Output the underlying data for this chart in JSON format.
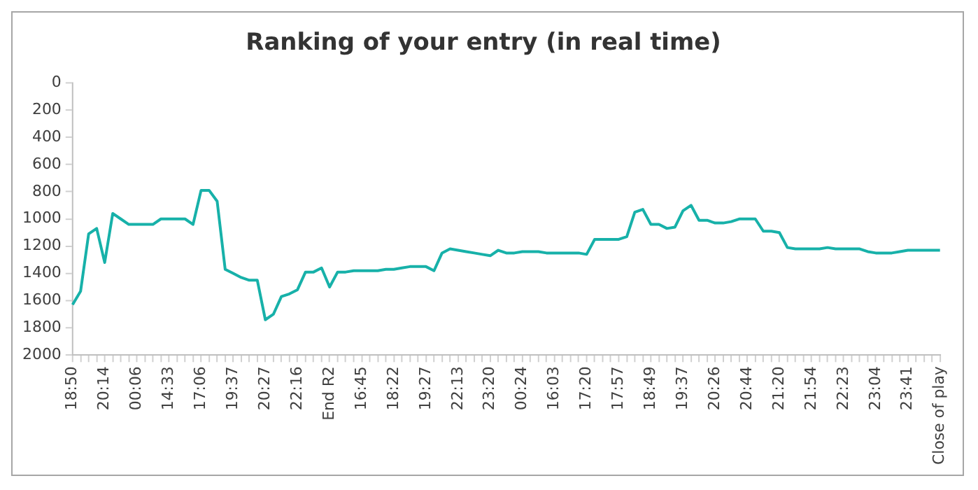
{
  "chart_data": {
    "type": "line",
    "title": "Ranking of your entry (in real time)",
    "categories": [
      "18:50",
      null,
      null,
      null,
      "20:14",
      null,
      null,
      null,
      "00:06",
      null,
      null,
      null,
      "14:33",
      null,
      null,
      null,
      "17:06",
      null,
      null,
      null,
      "19:37",
      null,
      null,
      null,
      "20:27",
      null,
      null,
      null,
      "22:16",
      null,
      null,
      null,
      "End R2",
      null,
      null,
      null,
      "16:45",
      null,
      null,
      null,
      "18:22",
      null,
      null,
      null,
      "19:27",
      null,
      null,
      null,
      "22:13",
      null,
      null,
      null,
      "23:20",
      null,
      null,
      null,
      "00:24",
      null,
      null,
      null,
      "16:03",
      null,
      null,
      null,
      "17:20",
      null,
      null,
      null,
      "17:57",
      null,
      null,
      null,
      "18:49",
      null,
      null,
      null,
      "19:37",
      null,
      null,
      null,
      "20:26",
      null,
      null,
      null,
      "20:44",
      null,
      null,
      null,
      "21:20",
      null,
      null,
      null,
      "21:54",
      null,
      null,
      null,
      "22:23",
      null,
      null,
      null,
      "23:04",
      null,
      null,
      null,
      "23:41",
      null,
      null,
      null,
      "Close of play"
    ],
    "series": [
      {
        "color": "#17b1a9",
        "values": [
          1630,
          1530,
          1110,
          1070,
          1320,
          960,
          1000,
          1040,
          1040,
          1040,
          1040,
          1000,
          1000,
          1000,
          1000,
          1040,
          790,
          790,
          870,
          1370,
          1400,
          1430,
          1450,
          1450,
          1740,
          1700,
          1570,
          1550,
          1520,
          1390,
          1390,
          1360,
          1500,
          1390,
          1390,
          1380,
          1380,
          1380,
          1380,
          1370,
          1370,
          1360,
          1350,
          1350,
          1350,
          1380,
          1250,
          1220,
          1230,
          1240,
          1250,
          1260,
          1270,
          1230,
          1250,
          1250,
          1240,
          1240,
          1240,
          1250,
          1250,
          1250,
          1250,
          1250,
          1260,
          1150,
          1150,
          1150,
          1150,
          1130,
          950,
          930,
          1040,
          1040,
          1070,
          1060,
          940,
          900,
          1010,
          1010,
          1030,
          1030,
          1020,
          1000,
          1000,
          1000,
          1090,
          1090,
          1100,
          1210,
          1220,
          1220,
          1220,
          1220,
          1210,
          1220,
          1220,
          1220,
          1220,
          1240,
          1250,
          1250,
          1250,
          1240,
          1230,
          1230,
          1230,
          1230,
          1230
        ]
      }
    ],
    "ylim": [
      2000,
      0
    ],
    "yticks": [
      0,
      200,
      400,
      600,
      800,
      1000,
      1200,
      1400,
      1600,
      1800,
      2000
    ],
    "grid": false,
    "legend": false,
    "marker": "none",
    "line_style": "solid"
  }
}
